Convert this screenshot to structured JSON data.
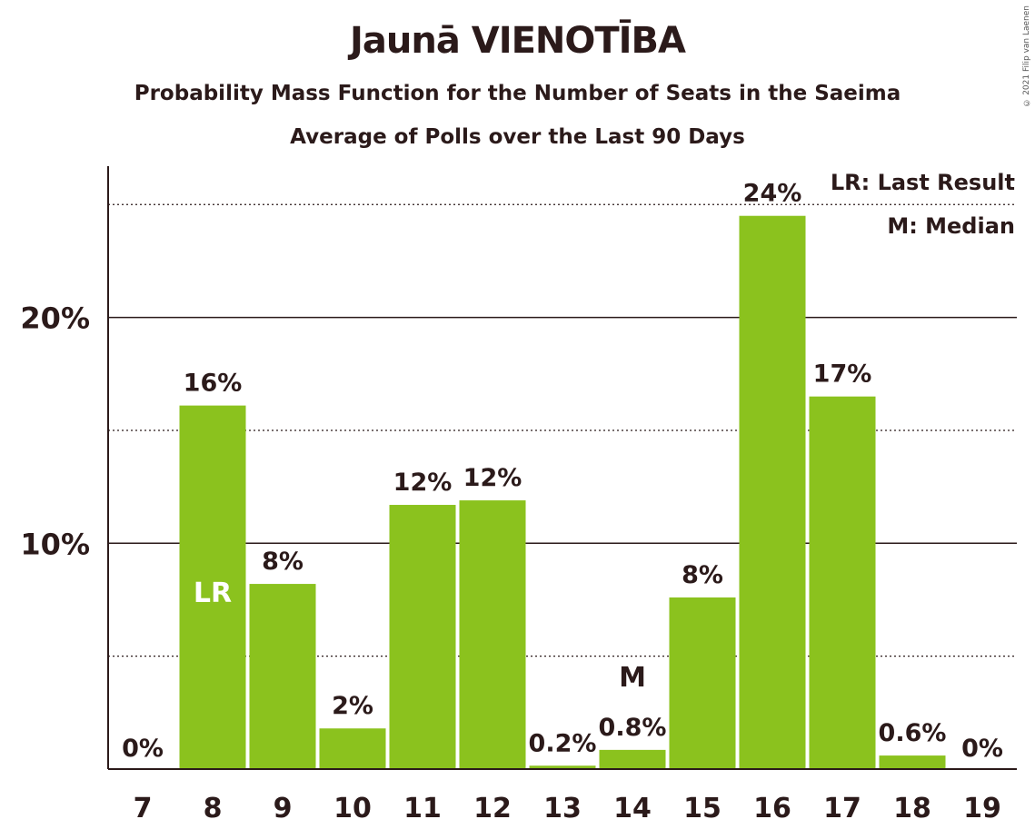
{
  "chart_data": {
    "type": "bar",
    "title": "Jaunā VIENOTĪBA",
    "subtitle": "Probability Mass Function for the Number of Seats in the Saeima",
    "subtitle2": "Average of Polls over the Last 90 Days",
    "copyright": "© 2021 Filip van Laenen",
    "categories": [
      "7",
      "8",
      "9",
      "10",
      "11",
      "12",
      "13",
      "14",
      "15",
      "16",
      "17",
      "18",
      "19"
    ],
    "values": [
      0,
      16.1,
      8.2,
      1.8,
      11.7,
      11.9,
      0.15,
      0.85,
      7.6,
      24.5,
      16.5,
      0.6,
      0
    ],
    "value_labels": [
      "0%",
      "16%",
      "8%",
      "2%",
      "12%",
      "12%",
      "0.2%",
      "0.8%",
      "8%",
      "24%",
      "17%",
      "0.6%",
      "0%"
    ],
    "ylim": [
      0,
      26.7
    ],
    "yticks": [
      {
        "value": 10,
        "label": "10%"
      },
      {
        "value": 20,
        "label": "20%"
      }
    ],
    "minor_gridlines": [
      5,
      15,
      25
    ],
    "bar_color": "#8bc21e",
    "last_result": {
      "category": "8",
      "label": "LR"
    },
    "median": {
      "category": "14",
      "label": "M"
    },
    "legend": [
      "LR: Last Result",
      "M: Median"
    ],
    "legend_position": "top-right",
    "grid": true
  }
}
